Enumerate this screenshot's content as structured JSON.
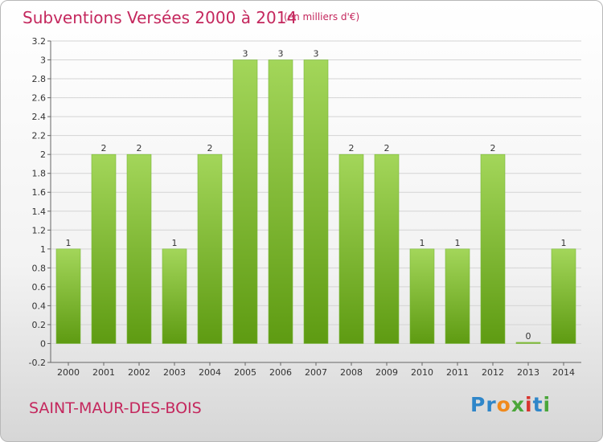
{
  "header": {
    "title": "Subventions Versées 2000 à 2014",
    "unit": "(en milliers d'€)"
  },
  "footer": {
    "commune": "SAINT-MAUR-DES-BOIS",
    "logo": "Proxiti"
  },
  "colors": {
    "bar_top": "#a3d65a",
    "bar_bottom": "#5e9b12",
    "title": "#c4275d"
  },
  "chart_data": {
    "type": "bar",
    "title": "Subventions Versées 2000 à 2014",
    "subtitle": "(en milliers d'€)",
    "categories": [
      "2000",
      "2001",
      "2002",
      "2003",
      "2004",
      "2005",
      "2006",
      "2007",
      "2008",
      "2009",
      "2010",
      "2011",
      "2012",
      "2013",
      "2014"
    ],
    "values": [
      1,
      2,
      2,
      1,
      2,
      3,
      3,
      3,
      2,
      2,
      1,
      1,
      2,
      0,
      1
    ],
    "value_labels": [
      "1",
      "2",
      "2",
      "1",
      "2",
      "3",
      "3",
      "3",
      "2",
      "2",
      "1",
      "1",
      "2",
      "0",
      "1"
    ],
    "ylim": [
      -0.2,
      3.2
    ],
    "yticks": [
      -0.2,
      0,
      0.2,
      0.4,
      0.6,
      0.8,
      1,
      1.2,
      1.4,
      1.6,
      1.8,
      2,
      2.2,
      2.4,
      2.6,
      2.8,
      3,
      3.2
    ],
    "ytick_labels": [
      "-0.2",
      "0",
      "0.2",
      "0.4",
      "0.6",
      "0.8",
      "1",
      "1.2",
      "1.4",
      "1.6",
      "1.8",
      "2",
      "2.2",
      "2.4",
      "2.6",
      "2.8",
      "3",
      "3.2"
    ],
    "grid": true,
    "legend": "none"
  }
}
